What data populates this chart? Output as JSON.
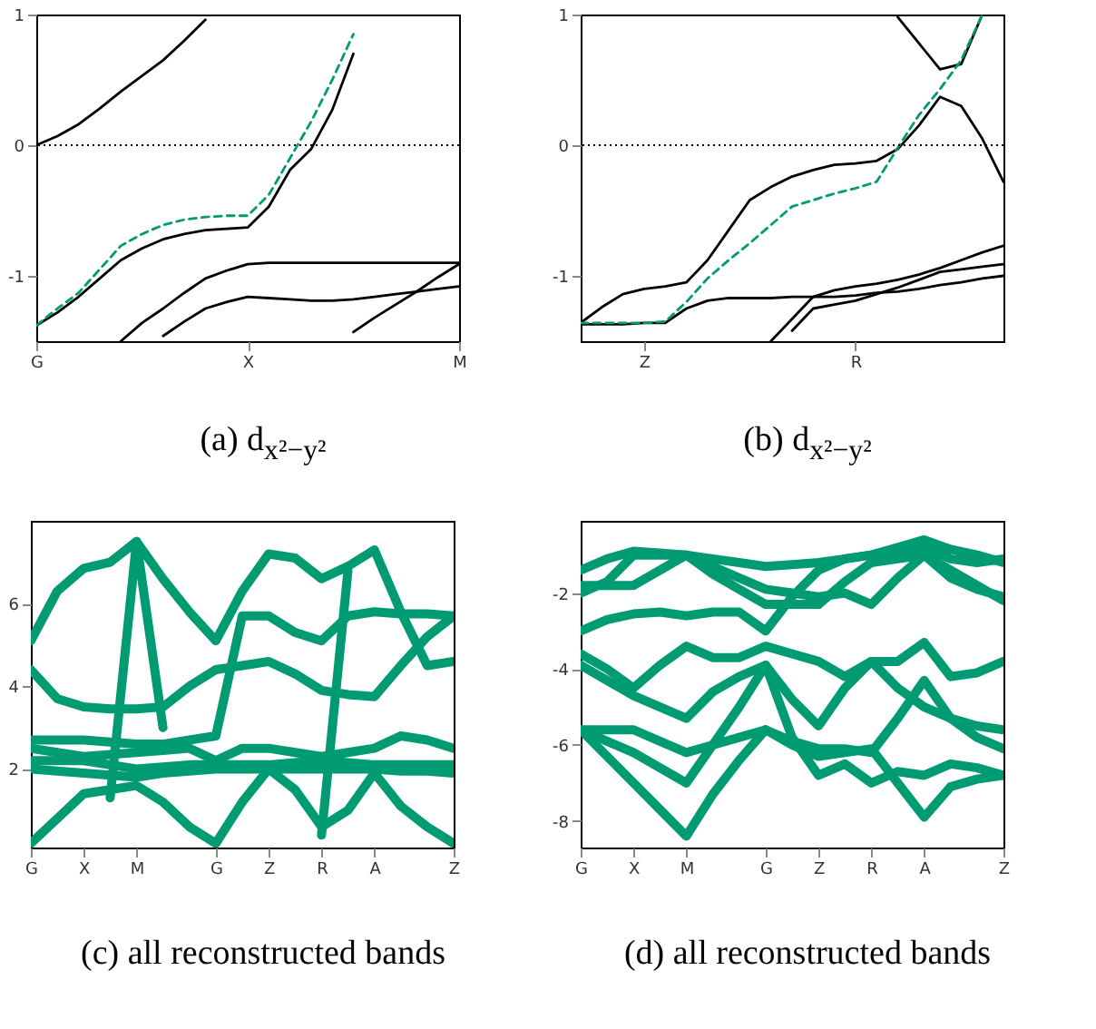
{
  "chart_data": [
    {
      "type": "line",
      "xlabel": "(a) d$_{x²−y²}$",
      "categories": [
        "G",
        null,
        null,
        null,
        null,
        null,
        null,
        null,
        null,
        null,
        "X",
        null,
        null,
        null,
        null,
        null,
        null,
        null,
        null,
        null,
        "M"
      ],
      "ylim": [
        -1.5,
        1
      ],
      "yticks": [
        -1,
        0,
        1
      ],
      "ref_lines": [
        {
          "axis": "y",
          "value": 0,
          "color": "#000000",
          "line_style": "dotted"
        }
      ],
      "series": [
        {
          "color": "#000000",
          "values": [
            0,
            0.07,
            0.16,
            0.28,
            0.41,
            0.53,
            0.65,
            0.8,
            0.96,
            null,
            null,
            null,
            null,
            null,
            null,
            null,
            null,
            null,
            null,
            null,
            null
          ]
        },
        {
          "color": "#000000",
          "values": [
            -1.38,
            -1.28,
            -1.16,
            -1.02,
            -0.88,
            -0.79,
            -0.72,
            -0.68,
            -0.65,
            -0.64,
            -0.63,
            -0.47,
            -0.19,
            -0.03,
            0.27,
            0.7,
            null,
            null,
            null,
            null,
            null
          ]
        },
        {
          "color": "#000000",
          "values": [
            null,
            null,
            null,
            null,
            -1.5,
            -1.36,
            -1.25,
            -1.13,
            -1.02,
            -0.96,
            -0.91,
            -0.9,
            -0.9,
            -0.9,
            -0.9,
            -0.9,
            -0.9,
            -0.9,
            -0.9,
            -0.9,
            -0.9
          ]
        },
        {
          "color": "#000000",
          "values": [
            null,
            null,
            null,
            null,
            null,
            null,
            -1.46,
            -1.35,
            -1.25,
            -1.2,
            -1.16,
            -1.17,
            -1.18,
            -1.19,
            -1.19,
            -1.18,
            -1.16,
            -1.14,
            -1.12,
            -1.1,
            -1.08
          ]
        },
        {
          "color": "#000000",
          "values": [
            null,
            null,
            null,
            null,
            null,
            null,
            null,
            null,
            null,
            null,
            null,
            null,
            null,
            null,
            null,
            -1.43,
            -1.32,
            -1.22,
            -1.12,
            -1.01,
            -0.91
          ]
        },
        {
          "color": "#009b72",
          "line_style": "dashed",
          "values": [
            -1.38,
            -1.25,
            -1.13,
            -0.95,
            -0.77,
            -0.68,
            -0.61,
            -0.57,
            -0.55,
            -0.54,
            -0.54,
            -0.38,
            -0.1,
            0.18,
            0.5,
            0.85,
            null,
            null,
            null,
            null,
            null
          ]
        }
      ]
    },
    {
      "type": "line",
      "xlabel": "(b) d$_{x²−y²}$",
      "categories": [
        null,
        null,
        null,
        "Z",
        null,
        null,
        null,
        null,
        null,
        null,
        null,
        null,
        null,
        "R",
        null,
        null,
        null,
        null,
        null,
        null,
        null
      ],
      "ylim": [
        -1.5,
        1
      ],
      "yticks": [
        -1,
        0,
        1
      ],
      "ref_lines": [
        {
          "axis": "y",
          "value": 0,
          "color": "#000000",
          "line_style": "dotted"
        }
      ],
      "series": [
        {
          "color": "#000000",
          "values": [
            -1.36,
            -1.24,
            -1.14,
            -1.1,
            -1.08,
            -1.05,
            -0.88,
            -0.65,
            -0.42,
            -0.32,
            -0.24,
            -0.19,
            -0.15,
            -0.14,
            -0.12,
            -0.03,
            0.15,
            0.37,
            0.3,
            0.05,
            -0.28
          ]
        },
        {
          "color": "#000000",
          "values": [
            null,
            null,
            null,
            null,
            null,
            null,
            null,
            null,
            null,
            null,
            null,
            null,
            null,
            null,
            null,
            0.98,
            0.78,
            0.58,
            0.62,
            1,
            null
          ]
        },
        {
          "color": "#000000",
          "values": [
            -1.37,
            -1.37,
            -1.37,
            -1.36,
            -1.36,
            -1.25,
            -1.19,
            -1.17,
            -1.17,
            -1.17,
            -1.16,
            -1.16,
            -1.16,
            -1.15,
            -1.13,
            -1.12,
            -1.1,
            -1.07,
            -1.05,
            -1.02,
            -1
          ]
        },
        {
          "color": "#000000",
          "values": [
            null,
            null,
            null,
            null,
            null,
            null,
            null,
            null,
            null,
            -1.5,
            -1.33,
            -1.16,
            -1.11,
            -1.08,
            -1.06,
            -1.03,
            -0.99,
            -0.94,
            -0.88,
            -0.82,
            -0.77
          ]
        },
        {
          "color": "#000000",
          "values": [
            null,
            null,
            null,
            null,
            null,
            null,
            null,
            null,
            null,
            null,
            -1.42,
            -1.25,
            -1.22,
            -1.19,
            -1.14,
            -1.09,
            -1.03,
            -0.97,
            -0.95,
            -0.93,
            -0.91
          ]
        },
        {
          "color": "#009b72",
          "line_style": "dashed",
          "values": [
            -1.36,
            -1.36,
            -1.36,
            -1.36,
            -1.35,
            -1.2,
            -1.02,
            -0.88,
            -0.75,
            -0.61,
            -0.47,
            -0.42,
            -0.37,
            -0.33,
            -0.28,
            -0.02,
            0.23,
            0.43,
            0.65,
            1,
            null
          ]
        }
      ]
    },
    {
      "type": "line",
      "xlabel": "(c) all reconstructed bands",
      "categories": [
        "G",
        null,
        "X",
        null,
        "M",
        null,
        null,
        "G",
        null,
        "Z",
        null,
        "R",
        null,
        "A",
        null,
        null,
        "Z"
      ],
      "ylim": [
        0.1,
        8
      ],
      "yticks": [
        2,
        4,
        6
      ],
      "series": [
        {
          "color": "#009b72",
          "values": [
            5.1,
            6.3,
            6.85,
            7.0,
            7.5,
            6.6,
            5.8,
            5.1,
            6.3,
            7.2,
            7.1,
            6.6,
            6.9,
            7.3,
            5.8,
            4.5,
            4.6
          ]
        },
        {
          "color": "#009b72",
          "values": [
            4.4,
            3.7,
            3.5,
            3.45,
            3.45,
            3.5,
            4.0,
            4.4,
            4.5,
            4.6,
            4.3,
            3.9,
            3.8,
            3.75,
            4.5,
            5.2,
            5.7
          ]
        },
        {
          "color": "#009b72",
          "values": [
            2.7,
            2.7,
            2.7,
            2.65,
            2.6,
            2.6,
            2.7,
            2.8,
            5.7,
            5.7,
            5.3,
            5.1,
            5.7,
            5.8,
            5.75,
            5.75,
            5.7
          ]
        },
        {
          "color": "#009b72",
          "values": [
            2.5,
            2.4,
            2.3,
            2.35,
            2.4,
            2.45,
            2.5,
            2.2,
            2.5,
            2.5,
            2.4,
            2.3,
            2.4,
            2.5,
            2.8,
            2.7,
            2.5
          ]
        },
        {
          "color": "#009b72",
          "values": [
            2.2,
            2.2,
            2.2,
            2.1,
            2.0,
            2.05,
            2.1,
            2.1,
            2.1,
            2.1,
            2.15,
            2.2,
            2.15,
            2.1,
            2.1,
            2.1,
            2.1
          ]
        },
        {
          "color": "#009b72",
          "values": [
            2.0,
            1.95,
            1.9,
            1.85,
            1.8,
            1.9,
            1.95,
            2.0,
            2.0,
            2.0,
            2.0,
            2.0,
            2.0,
            2.0,
            1.95,
            1.95,
            1.9
          ]
        },
        {
          "color": "#009b72",
          "values": [
            0.2,
            0.8,
            1.4,
            1.5,
            1.6,
            1.2,
            0.6,
            0.2,
            1.2,
            2.0,
            1.5,
            0.6,
            1.0,
            1.9,
            1.1,
            0.6,
            0.2
          ]
        },
        {
          "color": "#009b72",
          "values": [
            null,
            null,
            null,
            1.3,
            7.5,
            3.0,
            null,
            null,
            null,
            null,
            null,
            null,
            null,
            null,
            null,
            null,
            null
          ]
        },
        {
          "color": "#009b72",
          "values": [
            null,
            null,
            null,
            null,
            null,
            null,
            null,
            null,
            null,
            null,
            null,
            0.4,
            6.8,
            null,
            null,
            null,
            null
          ]
        }
      ]
    },
    {
      "type": "line",
      "xlabel": "(d) all reconstructed bands",
      "categories": [
        "G",
        null,
        "X",
        null,
        "M",
        null,
        null,
        "G",
        null,
        "Z",
        null,
        "R",
        null,
        "A",
        null,
        null,
        "Z"
      ],
      "ylim": [
        -8.7,
        -0.1
      ],
      "yticks": [
        -8,
        -6,
        -4,
        -2
      ],
      "series": [
        {
          "color": "#009b72",
          "values": [
            -3.0,
            -2.7,
            -2.55,
            -2.5,
            -2.6,
            -2.5,
            -2.5,
            -3.0,
            -2.1,
            -1.4,
            -1.1,
            -1.0,
            -0.9,
            -0.8,
            -1.1,
            -1.2,
            -1.1
          ]
        },
        {
          "color": "#009b72",
          "values": [
            -1.8,
            -1.8,
            -1.8,
            -1.4,
            -1.0,
            -1.3,
            -1.6,
            -1.9,
            -2.0,
            -2.1,
            -2.0,
            -2.3,
            -1.6,
            -1.0,
            -1.4,
            -1.8,
            -2.2
          ]
        },
        {
          "color": "#009b72",
          "values": [
            -1.4,
            -1.1,
            -0.9,
            -0.95,
            -1.0,
            -1.5,
            -1.9,
            -2.3,
            -2.3,
            -2.3,
            -1.7,
            -1.2,
            -1.1,
            -1.0,
            -1.6,
            -1.9,
            -2.1
          ]
        },
        {
          "color": "#009b72",
          "values": [
            -2.0,
            -1.7,
            -1.0,
            -1.0,
            -1.0,
            -1.1,
            -1.2,
            -1.3,
            -1.25,
            -1.2,
            -1.1,
            -1.0,
            -0.8,
            -0.6,
            -0.85,
            -1.0,
            -1.2
          ]
        },
        {
          "color": "#009b72",
          "values": [
            -3.6,
            -4.0,
            -4.5,
            -3.9,
            -3.4,
            -3.7,
            -3.7,
            -3.4,
            -3.6,
            -3.8,
            -4.2,
            -3.8,
            -3.8,
            -3.3,
            -4.2,
            -4.1,
            -3.8
          ]
        },
        {
          "color": "#009b72",
          "values": [
            -3.9,
            -4.3,
            -4.7,
            -5.0,
            -5.3,
            -4.6,
            -4.2,
            -3.9,
            -4.8,
            -5.5,
            -4.5,
            -3.8,
            -4.5,
            -5.0,
            -5.3,
            -5.5,
            -5.6
          ]
        },
        {
          "color": "#009b72",
          "values": [
            -5.6,
            -5.6,
            -5.6,
            -5.9,
            -6.2,
            -6.0,
            -5.8,
            -5.6,
            -5.9,
            -6.1,
            -6.1,
            -6.2,
            -5.3,
            -4.3,
            -5.3,
            -5.8,
            -6.1
          ]
        },
        {
          "color": "#009b72",
          "values": [
            -5.6,
            -5.9,
            -6.2,
            -6.6,
            -7.0,
            -6.0,
            -5.0,
            -3.9,
            -5.8,
            -6.8,
            -6.5,
            -7.0,
            -6.7,
            -6.8,
            -6.5,
            -6.6,
            -6.8
          ]
        },
        {
          "color": "#009b72",
          "values": [
            -5.6,
            -6.3,
            -7.0,
            -7.7,
            -8.4,
            -7.3,
            -6.4,
            -5.6,
            -6.0,
            -6.3,
            -6.2,
            -6.1,
            -7.0,
            -7.9,
            -7.1,
            -6.9,
            -6.8
          ]
        }
      ]
    }
  ]
}
